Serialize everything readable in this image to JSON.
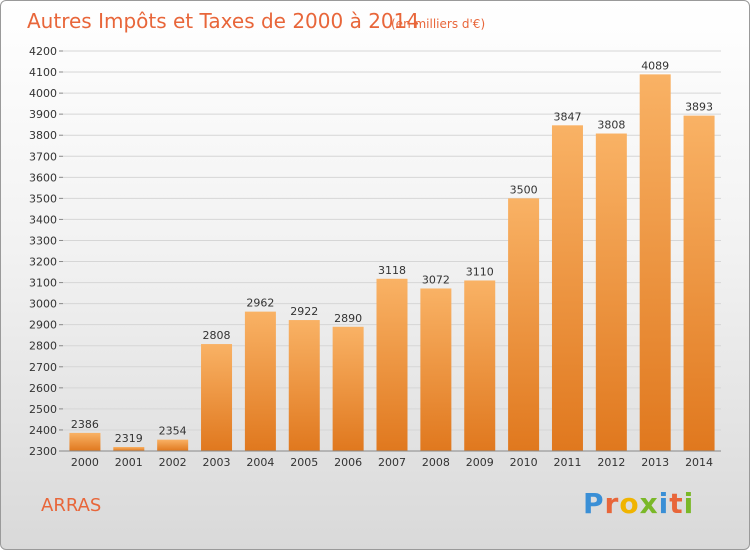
{
  "chart_data": {
    "type": "bar",
    "title": "Autres Impôts et Taxes de 2000 à 2014",
    "subtitle": "(en milliers d'€)",
    "categories": [
      "2000",
      "2001",
      "2002",
      "2003",
      "2004",
      "2005",
      "2006",
      "2007",
      "2008",
      "2009",
      "2010",
      "2011",
      "2012",
      "2013",
      "2014"
    ],
    "values": [
      2386,
      2319,
      2354,
      2808,
      2962,
      2922,
      2890,
      3118,
      3072,
      3110,
      3500,
      3847,
      3808,
      4089,
      3893
    ],
    "ylim": [
      2300,
      4200
    ],
    "yticks": [
      2300,
      2400,
      2500,
      2600,
      2700,
      2800,
      2900,
      3000,
      3100,
      3200,
      3300,
      3400,
      3500,
      3600,
      3700,
      3800,
      3900,
      4000,
      4100,
      4200
    ],
    "grid": true,
    "colors": {
      "bar_light": "#f7a855",
      "bar_dark": "#e57a1f",
      "title": "#e8663a"
    }
  },
  "footer": {
    "city": "ARRAS",
    "logo": "Proxiti",
    "logo_colors": [
      "#3a8fd6",
      "#e8663a",
      "#f0b400",
      "#7ab828",
      "#3a8fd6",
      "#e8663a",
      "#7ab828"
    ]
  }
}
